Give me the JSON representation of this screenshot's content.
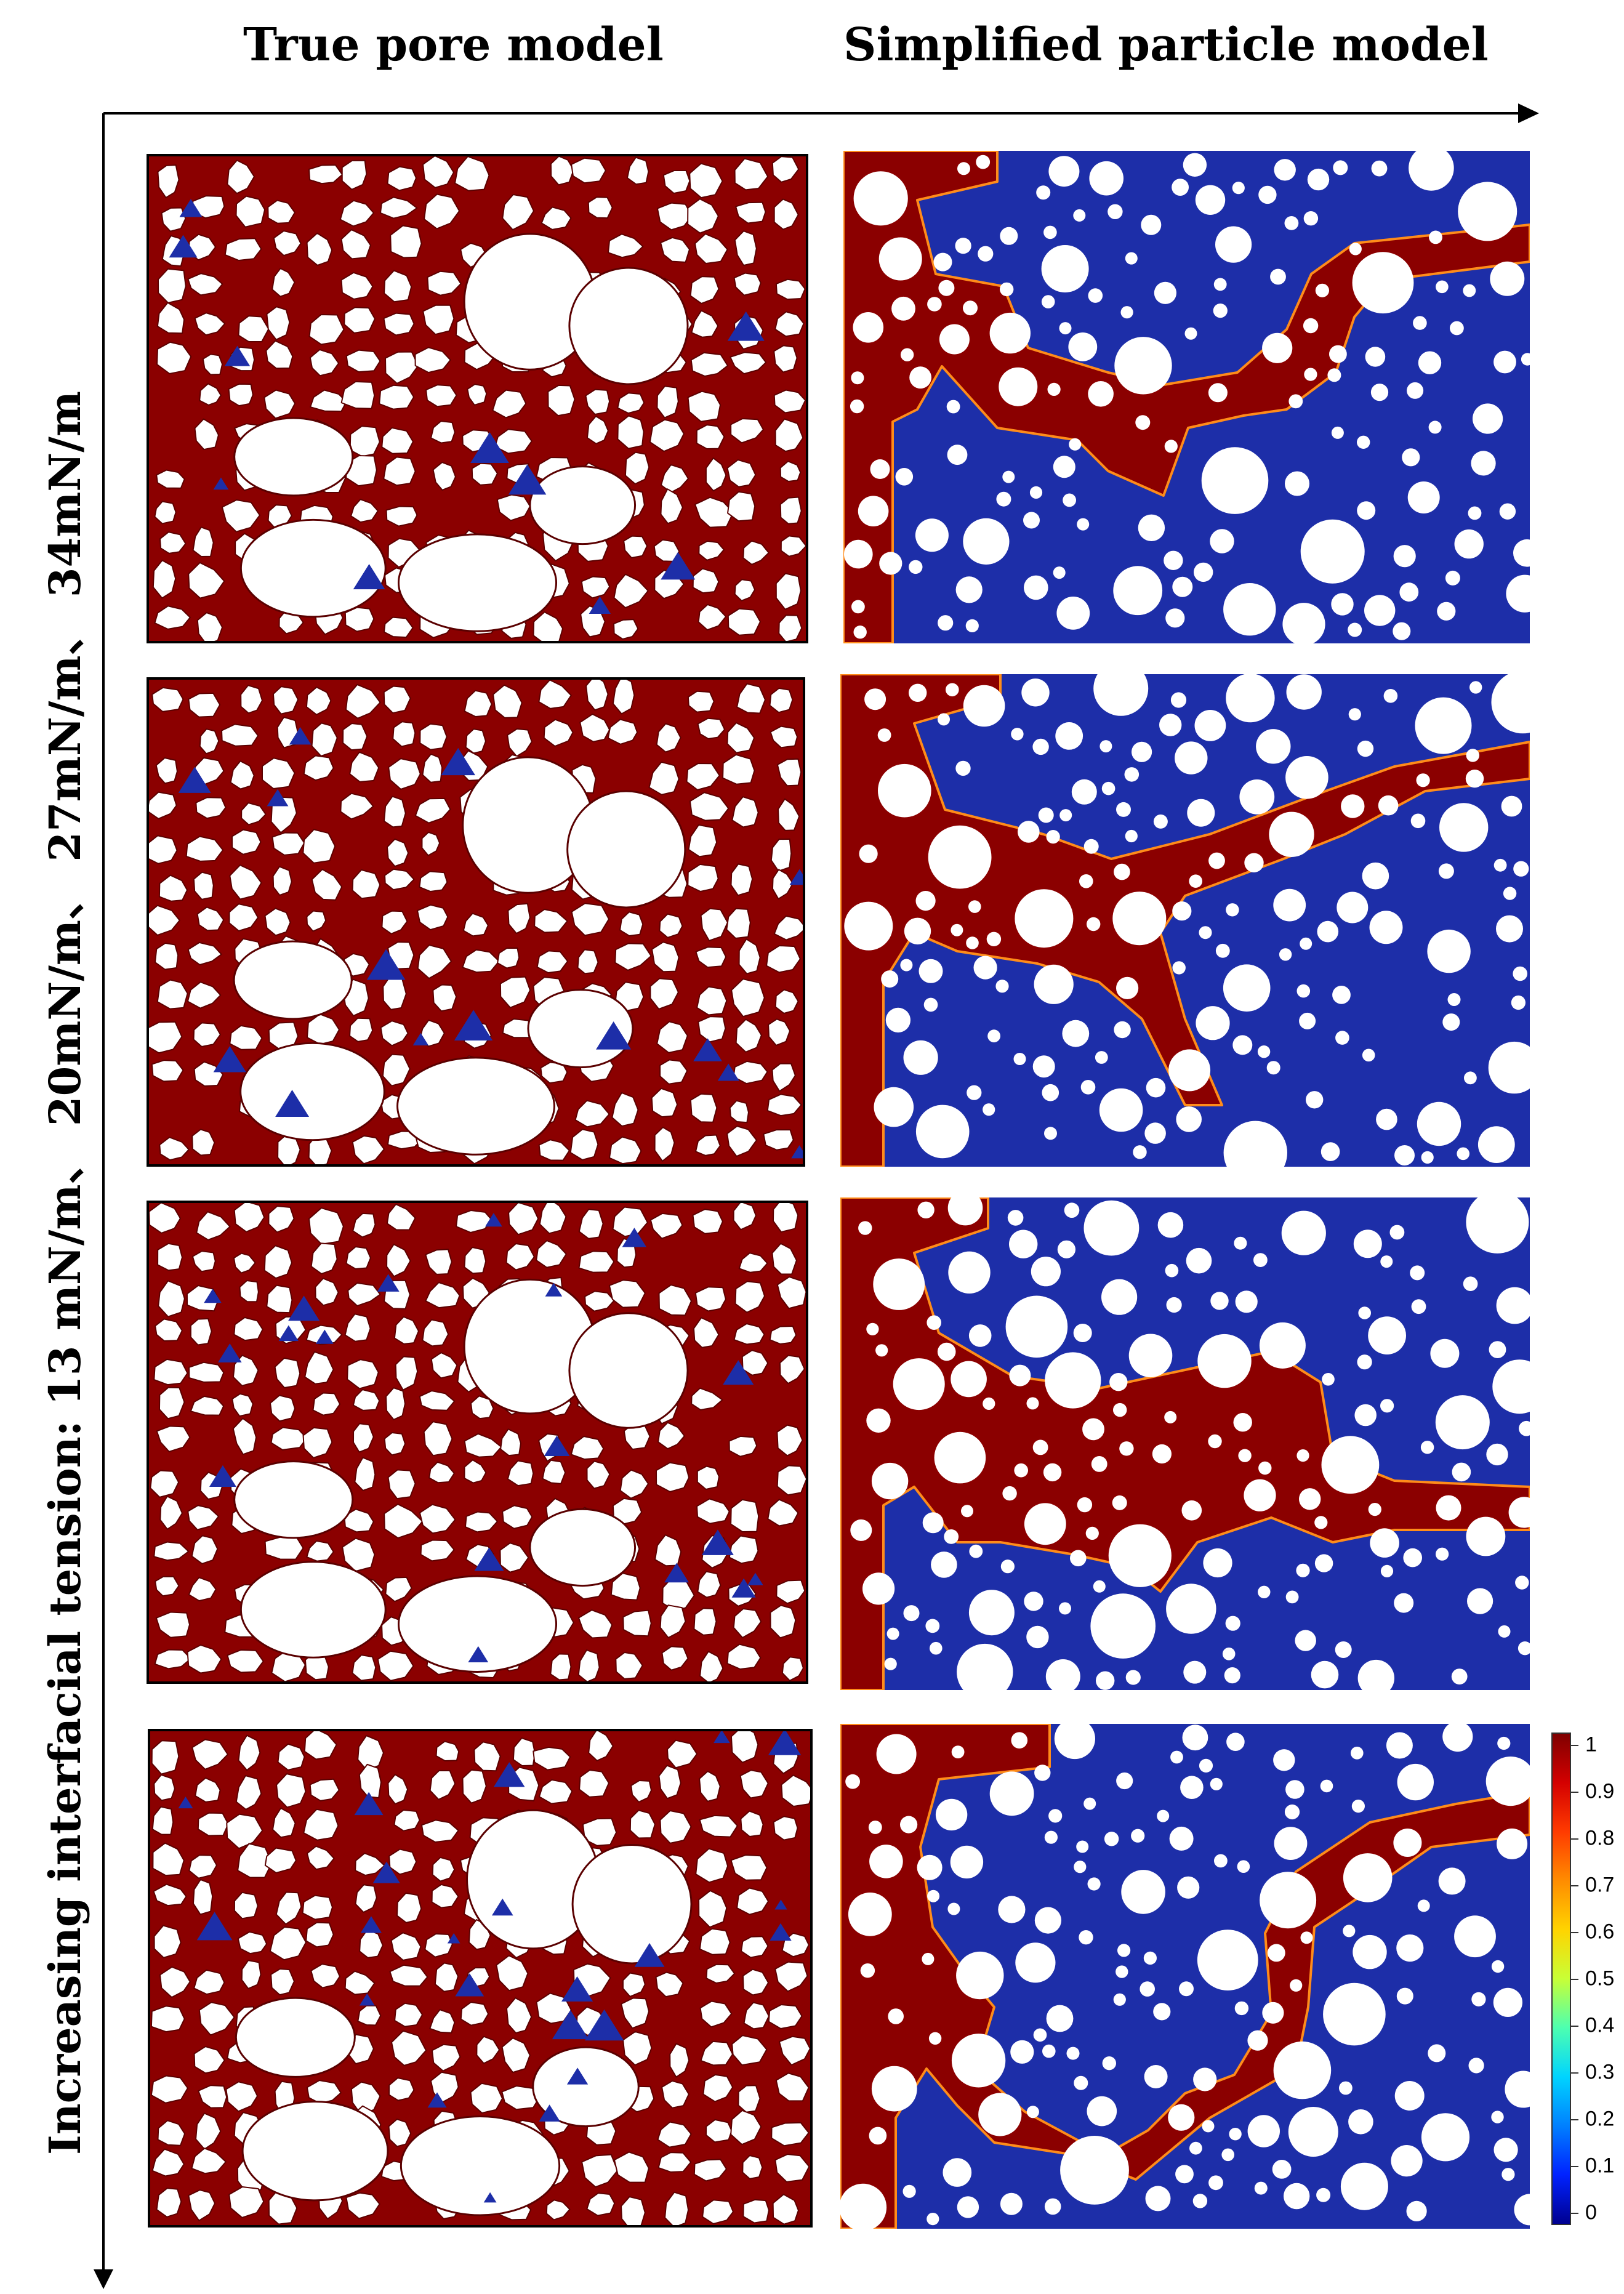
{
  "headers": {
    "left": "True pore model",
    "right": "Simplified particle model"
  },
  "axis_label": {
    "text": "Increasing interfacial tension: 13 mN/m、 20mN/m、 27mN/m、 34mN/m"
  },
  "colorbar": {
    "ticks": [
      "1",
      "0.9",
      "0.8",
      "0.7",
      "0.6",
      "0.5",
      "0.4",
      "0.3",
      "0.2",
      "0.1",
      "0"
    ],
    "colormap": [
      "#7f0000",
      "#d40000",
      "#ff3b00",
      "#ff8c00",
      "#ffd400",
      "#c8ff36",
      "#4dffb0",
      "#00d4ff",
      "#0080ff",
      "#0022ff",
      "#000090"
    ]
  },
  "colors": {
    "oil_phase": "#8b0000",
    "water_phase": "#1d2ea8",
    "grain": "#ffffff"
  },
  "rows": [
    {
      "interfacial_tension": "13 mN/m"
    },
    {
      "interfacial_tension": "20mN/m"
    },
    {
      "interfacial_tension": "27mN/m"
    },
    {
      "interfacial_tension": "34mN/m"
    }
  ]
}
